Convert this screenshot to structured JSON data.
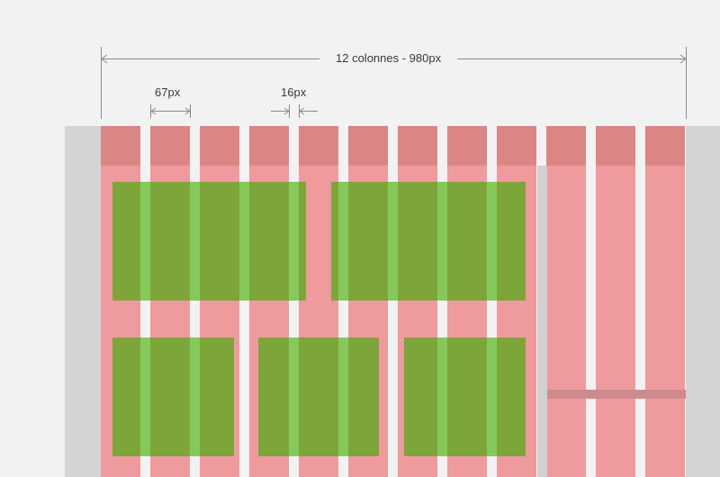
{
  "annotations": {
    "total_label": "12 colonnes - 980px",
    "column_width_label": "67px",
    "gutter_width_label": "16px"
  },
  "grid": {
    "columns": 12,
    "total_width": 980,
    "column_width": 67,
    "gutter_width": 16
  },
  "colors": {
    "background": "#f2f2f2",
    "page_margin": "#d4d4d4",
    "column_head": "#dc8585",
    "column_body": "#ef9a9c",
    "content_block": "#7da63a",
    "block_column_overlay": "#86c95a",
    "gutter": "#f2f2f2",
    "divider": "#d0d0d0",
    "divider_band": "#cf8a8c",
    "dimension_line": "#8a8a8a"
  }
}
